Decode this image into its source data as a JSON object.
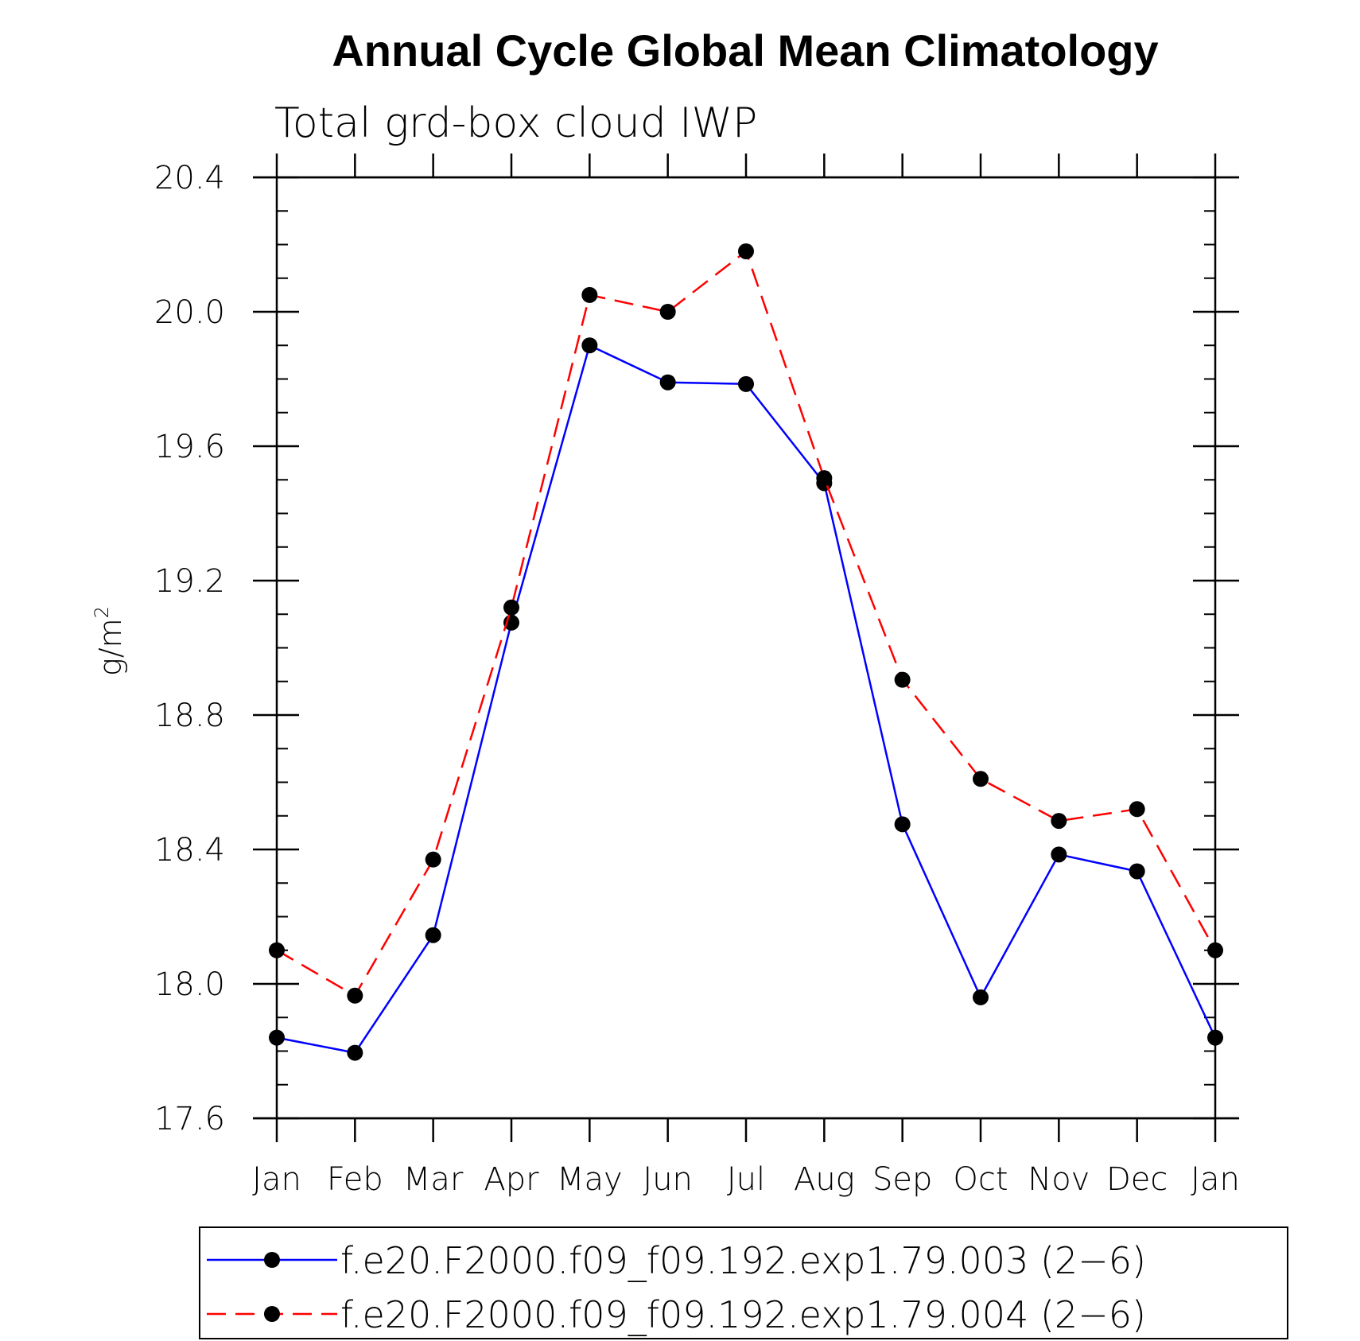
{
  "chart_data": {
    "type": "line",
    "title": "Annual Cycle Global Mean Climatology",
    "subtitle": "Total grd-box cloud IWP",
    "ylabel": "g/m",
    "ylabel_superscript": "2",
    "xlabel": "",
    "categories": [
      "Jan",
      "Feb",
      "Mar",
      "Apr",
      "May",
      "Jun",
      "Jul",
      "Aug",
      "Sep",
      "Oct",
      "Nov",
      "Dec",
      "Jan"
    ],
    "ylim": [
      17.6,
      20.4
    ],
    "yticks": [
      "17.6",
      "18.0",
      "18.4",
      "18.8",
      "19.2",
      "19.6",
      "20.0",
      "20.4"
    ],
    "yminor_step": 0.1,
    "grid": false,
    "legend_position": "bottom",
    "series": [
      {
        "name": "f.e20.F2000.f09_f09.192.exp1.79.003 (2−6)",
        "color": "#0000ff",
        "dash": "solid",
        "marker_color": "#000000",
        "values": [
          17.84,
          17.795,
          18.145,
          19.075,
          19.9,
          19.79,
          19.785,
          19.49,
          18.475,
          17.96,
          18.385,
          18.335,
          17.84
        ]
      },
      {
        "name": "f.e20.F2000.f09_f09.192.exp1.79.004 (2−6)",
        "color": "#ff0000",
        "dash": "dashed",
        "marker_color": "#000000",
        "values": [
          18.1,
          17.965,
          18.37,
          19.12,
          20.05,
          20.0,
          20.18,
          19.505,
          18.905,
          18.61,
          18.485,
          18.52,
          18.1
        ]
      }
    ]
  }
}
